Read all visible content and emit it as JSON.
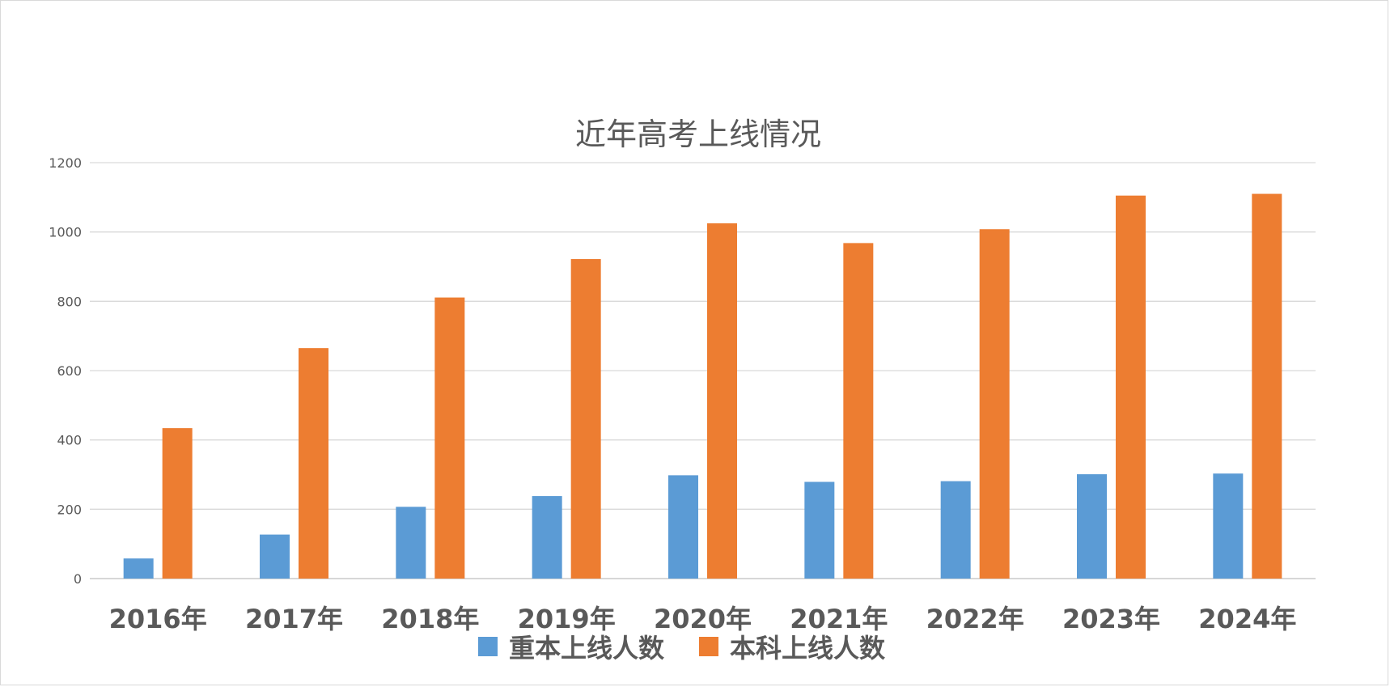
{
  "chart_data": {
    "type": "bar",
    "title": "近年高考上线情况",
    "categories": [
      "2016年",
      "2017年",
      "2018年",
      "2019年",
      "2020年",
      "2021年",
      "2022年",
      "2023年",
      "2024年"
    ],
    "series": [
      {
        "name": "重本上线人数",
        "color": "#5b9bd5",
        "values": [
          58,
          127,
          207,
          238,
          298,
          279,
          281,
          301,
          303
        ]
      },
      {
        "name": "本科上线人数",
        "color": "#ed7d31",
        "values": [
          434,
          665,
          811,
          922,
          1025,
          968,
          1008,
          1105,
          1110
        ]
      }
    ],
    "ylim": [
      0,
      1200
    ],
    "yticks": [
      "0",
      "200",
      "400",
      "600",
      "800",
      "1000",
      "1200"
    ],
    "xlabel": "",
    "ylabel": "",
    "grid": true,
    "legend_position": "bottom"
  }
}
